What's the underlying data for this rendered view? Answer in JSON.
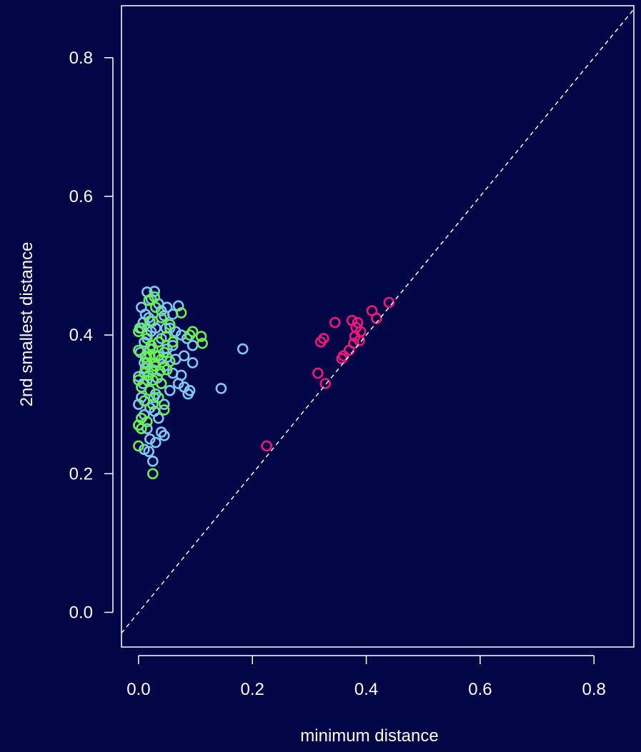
{
  "colors": {
    "background": "#020647",
    "foreground": "#ffffff",
    "blue_points": "#7ec8f5",
    "green_points": "#66f24f",
    "pink_points": "#f2157a"
  },
  "chart_data": {
    "type": "scatter",
    "title": "",
    "xlabel": "minimum distance",
    "ylabel": "2nd smallest distance",
    "xlim": [
      -0.03,
      0.87
    ],
    "ylim": [
      -0.05,
      0.875
    ],
    "xticks": [
      0.0,
      0.2,
      0.4,
      0.6,
      0.8
    ],
    "yticks": [
      0.0,
      0.2,
      0.4,
      0.6,
      0.8
    ],
    "xtick_labels": [
      "0.0",
      "0.2",
      "0.4",
      "0.6",
      "0.8"
    ],
    "ytick_labels": [
      "0.0",
      "0.2",
      "0.4",
      "0.6",
      "0.8"
    ],
    "grid": false,
    "legend": null,
    "reference_line": {
      "style": "dashed",
      "slope": 1,
      "intercept": 0
    },
    "series": [
      {
        "color": "#7ec8f5",
        "points": [
          [
            0.015,
            0.462
          ],
          [
            0.028,
            0.463
          ],
          [
            0.022,
            0.452
          ],
          [
            0.005,
            0.44
          ],
          [
            0.012,
            0.43
          ],
          [
            0.035,
            0.445
          ],
          [
            0.05,
            0.44
          ],
          [
            0.07,
            0.442
          ],
          [
            0.04,
            0.435
          ],
          [
            0.018,
            0.425
          ],
          [
            0.008,
            0.418
          ],
          [
            0.025,
            0.42
          ],
          [
            0.045,
            0.428
          ],
          [
            0.06,
            0.43
          ],
          [
            0.03,
            0.41
          ],
          [
            0.002,
            0.41
          ],
          [
            0.015,
            0.4
          ],
          [
            0.055,
            0.41
          ],
          [
            0.065,
            0.405
          ],
          [
            0.01,
            0.39
          ],
          [
            0.04,
            0.395
          ],
          [
            0.075,
            0.4
          ],
          [
            0.085,
            0.395
          ],
          [
            0.095,
            0.385
          ],
          [
            0.02,
            0.38
          ],
          [
            0.05,
            0.38
          ],
          [
            0.003,
            0.375
          ],
          [
            0.035,
            0.37
          ],
          [
            0.065,
            0.365
          ],
          [
            0.08,
            0.37
          ],
          [
            0.01,
            0.36
          ],
          [
            0.045,
            0.355
          ],
          [
            0.095,
            0.36
          ],
          [
            0.025,
            0.35
          ],
          [
            0.06,
            0.345
          ],
          [
            0.075,
            0.342
          ],
          [
            0.0,
            0.34
          ],
          [
            0.015,
            0.335
          ],
          [
            0.04,
            0.33
          ],
          [
            0.07,
            0.33
          ],
          [
            0.08,
            0.325
          ],
          [
            0.09,
            0.32
          ],
          [
            0.087,
            0.315
          ],
          [
            0.005,
            0.31
          ],
          [
            0.03,
            0.315
          ],
          [
            0.055,
            0.32
          ],
          [
            0.0,
            0.3
          ],
          [
            0.02,
            0.295
          ],
          [
            0.045,
            0.3
          ],
          [
            0.01,
            0.285
          ],
          [
            0.035,
            0.28
          ],
          [
            0.0,
            0.27
          ],
          [
            0.015,
            0.265
          ],
          [
            0.04,
            0.26
          ],
          [
            0.045,
            0.255
          ],
          [
            0.02,
            0.25
          ],
          [
            0.03,
            0.245
          ],
          [
            0.01,
            0.235
          ],
          [
            0.018,
            0.232
          ],
          [
            0.025,
            0.218
          ],
          [
            0.027,
            0.31
          ],
          [
            0.033,
            0.338
          ],
          [
            0.05,
            0.368
          ],
          [
            0.012,
            0.352
          ],
          [
            0.06,
            0.385
          ],
          [
            0.035,
            0.39
          ],
          [
            0.022,
            0.405
          ],
          [
            0.048,
            0.41
          ],
          [
            0.008,
            0.33
          ],
          [
            0.028,
            0.29
          ],
          [
            0.145,
            0.323
          ],
          [
            0.183,
            0.38
          ]
        ]
      },
      {
        "color": "#66f24f",
        "points": [
          [
            0.018,
            0.45
          ],
          [
            0.028,
            0.455
          ],
          [
            0.03,
            0.44
          ],
          [
            0.075,
            0.432
          ],
          [
            0.04,
            0.425
          ],
          [
            0.02,
            0.42
          ],
          [
            0.005,
            0.41
          ],
          [
            0.055,
            0.415
          ],
          [
            0.095,
            0.405
          ],
          [
            0.09,
            0.4
          ],
          [
            0.11,
            0.398
          ],
          [
            0.112,
            0.388
          ],
          [
            0.0,
            0.405
          ],
          [
            0.015,
            0.395
          ],
          [
            0.035,
            0.39
          ],
          [
            0.06,
            0.39
          ],
          [
            0.025,
            0.38
          ],
          [
            0.045,
            0.375
          ],
          [
            0.0,
            0.378
          ],
          [
            0.02,
            0.37
          ],
          [
            0.04,
            0.365
          ],
          [
            0.015,
            0.36
          ],
          [
            0.03,
            0.355
          ],
          [
            0.05,
            0.35
          ],
          [
            0.01,
            0.345
          ],
          [
            0.0,
            0.335
          ],
          [
            0.025,
            0.335
          ],
          [
            0.04,
            0.33
          ],
          [
            0.005,
            0.325
          ],
          [
            0.02,
            0.32
          ],
          [
            0.035,
            0.31
          ],
          [
            0.01,
            0.305
          ],
          [
            0.025,
            0.3
          ],
          [
            0.045,
            0.292
          ],
          [
            0.005,
            0.28
          ],
          [
            0.015,
            0.275
          ],
          [
            0.0,
            0.27
          ],
          [
            0.005,
            0.265
          ],
          [
            0.0,
            0.24
          ],
          [
            0.025,
            0.2
          ],
          [
            0.03,
            0.37
          ],
          [
            0.022,
            0.385
          ],
          [
            0.038,
            0.348
          ],
          [
            0.012,
            0.368
          ],
          [
            0.028,
            0.36
          ],
          [
            0.055,
            0.362
          ],
          [
            0.018,
            0.342
          ],
          [
            0.048,
            0.398
          ]
        ]
      },
      {
        "color": "#f2157a",
        "points": [
          [
            0.44,
            0.447
          ],
          [
            0.41,
            0.435
          ],
          [
            0.418,
            0.424
          ],
          [
            0.375,
            0.421
          ],
          [
            0.385,
            0.418
          ],
          [
            0.345,
            0.418
          ],
          [
            0.382,
            0.411
          ],
          [
            0.39,
            0.405
          ],
          [
            0.38,
            0.398
          ],
          [
            0.325,
            0.395
          ],
          [
            0.32,
            0.39
          ],
          [
            0.388,
            0.392
          ],
          [
            0.378,
            0.388
          ],
          [
            0.37,
            0.378
          ],
          [
            0.36,
            0.37
          ],
          [
            0.357,
            0.366
          ],
          [
            0.315,
            0.345
          ],
          [
            0.328,
            0.33
          ],
          [
            0.225,
            0.24
          ]
        ]
      }
    ]
  }
}
